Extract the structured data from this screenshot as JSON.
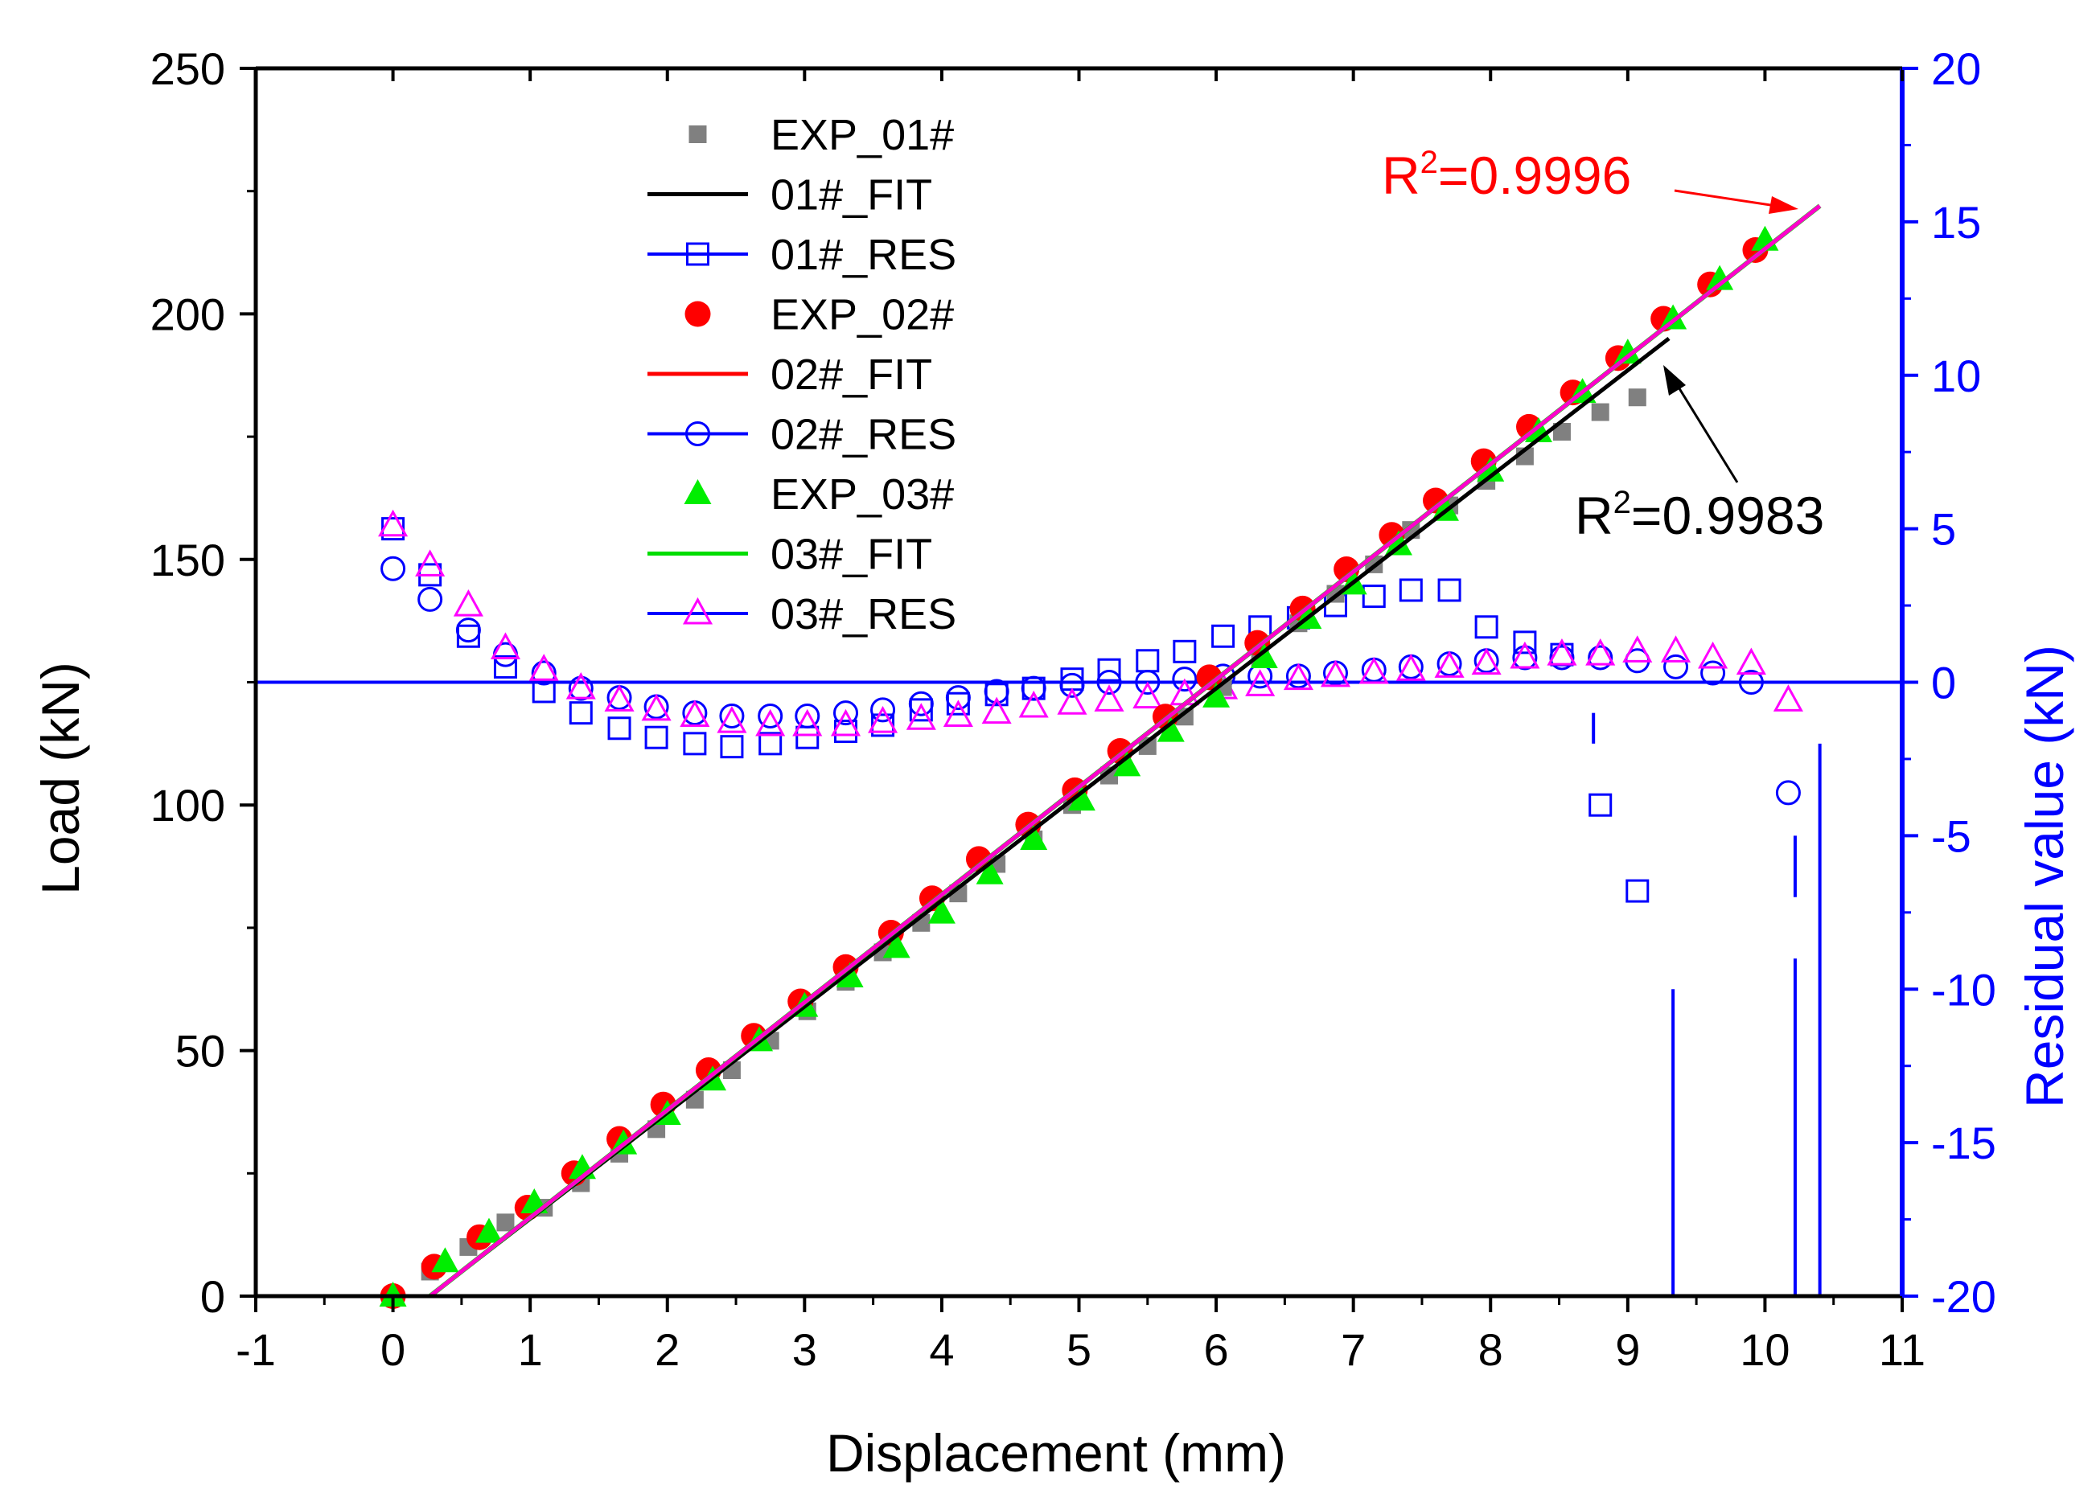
{
  "chart_data": {
    "type": "scatter",
    "xlabel": "Displacement (mm)",
    "ylabel": "Load (kN)",
    "y2label": "Residual value (kN)",
    "xlim": [
      -1,
      11
    ],
    "ylim": [
      0,
      250
    ],
    "y2lim": [
      -20,
      20
    ],
    "xticks": [
      -1,
      0,
      1,
      2,
      3,
      4,
      5,
      6,
      7,
      8,
      9,
      10,
      11
    ],
    "yticks": [
      0,
      50,
      100,
      150,
      200,
      250
    ],
    "y2ticks": [
      -20,
      -15,
      -10,
      -5,
      0,
      5,
      10,
      15,
      20
    ],
    "grid": false,
    "legend_position": "top-left",
    "colors": {
      "axis": "#000000",
      "right_axis": "#0000ff",
      "exp01": "#808080",
      "fit01": "#000000",
      "exp02": "#ff0000",
      "fit02": "#ff0000",
      "exp03": "#00ee00",
      "fit03": "#00dd00",
      "fit_overlay": "#ff00cc",
      "res01": "#0000ff",
      "res02": "#0000ff",
      "res03": "#ff00ff",
      "zero_line": "#0000ff",
      "r2_red": "#ff0000",
      "r2_black": "#000000"
    },
    "legend": [
      {
        "label": "EXP_01#",
        "kind": "gray-square"
      },
      {
        "label": "01#_FIT",
        "kind": "black-line"
      },
      {
        "label": "01#_RES",
        "kind": "blue-line-open-square"
      },
      {
        "label": "EXP_02#",
        "kind": "red-circle"
      },
      {
        "label": "02#_FIT",
        "kind": "red-line"
      },
      {
        "label": "02#_RES",
        "kind": "blue-line-open-circle"
      },
      {
        "label": "EXP_03#",
        "kind": "green-triangle"
      },
      {
        "label": "03#_FIT",
        "kind": "green-line"
      },
      {
        "label": "03#_RES",
        "kind": "blue-line-open-triangle"
      }
    ],
    "annotations": {
      "r2_top": {
        "base": "R",
        "sup": "2",
        "rest": "=0.9996"
      },
      "r2_bottom": {
        "base": "R",
        "sup": "2",
        "rest": "=0.9983"
      }
    },
    "series": [
      {
        "name": "EXP_01#",
        "x": [
          0,
          0.27,
          0.55,
          0.82,
          1.1,
          1.37,
          1.65,
          1.92,
          2.2,
          2.47,
          2.75,
          3.02,
          3.3,
          3.57,
          3.85,
          4.12,
          4.4,
          4.67,
          4.95,
          5.22,
          5.5,
          5.77,
          6.05,
          6.32,
          6.6,
          6.87,
          7.15,
          7.42,
          7.7,
          7.97,
          8.25,
          8.52,
          8.8,
          9.07
        ],
        "y": [
          0,
          5,
          10,
          15,
          18,
          23,
          29,
          34,
          40,
          46,
          52,
          58,
          64,
          70,
          76,
          82,
          88,
          93,
          100,
          106,
          112,
          118,
          124,
          130,
          137,
          143,
          149,
          156,
          161,
          166,
          171,
          176,
          180,
          183
        ]
      },
      {
        "name": "EXP_02#",
        "x": [
          0,
          0.3,
          0.63,
          0.98,
          1.32,
          1.65,
          1.97,
          2.3,
          2.63,
          2.97,
          3.3,
          3.63,
          3.93,
          4.27,
          4.63,
          4.97,
          5.3,
          5.63,
          5.95,
          6.3,
          6.63,
          6.95,
          7.28,
          7.6,
          7.95,
          8.28,
          8.6,
          8.93,
          9.26,
          9.6,
          9.93
        ],
        "y": [
          0,
          6,
          12,
          18,
          25,
          32,
          39,
          46,
          53,
          60,
          67,
          74,
          81,
          89,
          96,
          103,
          111,
          118,
          126,
          133,
          140,
          148,
          155,
          162,
          170,
          177,
          184,
          191,
          199,
          206,
          213
        ]
      },
      {
        "name": "EXP_03#",
        "x": [
          0,
          0.38,
          0.7,
          1.03,
          1.38,
          1.68,
          2,
          2.33,
          2.67,
          3,
          3.33,
          3.67,
          4,
          4.35,
          4.67,
          5.02,
          5.35,
          5.67,
          6,
          6.35,
          6.67,
          7,
          7.33,
          7.67,
          8,
          8.35,
          8.67,
          9,
          9.33,
          9.67,
          10
        ],
        "y": [
          0,
          7,
          13,
          19,
          26,
          31,
          37,
          44,
          52,
          59,
          65,
          71,
          78,
          86,
          93,
          101,
          108,
          115,
          122,
          130,
          138,
          145,
          153,
          160,
          168,
          176,
          184,
          192,
          199,
          207,
          215
        ]
      },
      {
        "name": "01#_FIT",
        "x": [
          0.27,
          9.3
        ],
        "y": [
          0,
          195
        ]
      },
      {
        "name": "02#_FIT",
        "x": [
          0.27,
          10.4
        ],
        "y": [
          0,
          222
        ]
      },
      {
        "name": "03#_FIT",
        "x": [
          0.27,
          10.4
        ],
        "y": [
          0,
          222
        ]
      },
      {
        "name": "01#_RES",
        "axis": "right",
        "x": [
          0,
          0.27,
          0.55,
          0.82,
          1.1,
          1.37,
          1.65,
          1.92,
          2.2,
          2.47,
          2.75,
          3.02,
          3.3,
          3.57,
          3.85,
          4.12,
          4.4,
          4.67,
          4.95,
          5.22,
          5.5,
          5.77,
          6.05,
          6.32,
          6.6,
          6.87,
          7.15,
          7.42,
          7.7,
          7.97,
          8.25,
          8.52,
          8.8,
          9.07
        ],
        "y": [
          5,
          3.5,
          1.5,
          0.5,
          -0.3,
          -1,
          -1.5,
          -1.8,
          -2,
          -2.1,
          -2,
          -1.8,
          -1.6,
          -1.4,
          -0.9,
          -0.7,
          -0.4,
          -0.2,
          0.1,
          0.4,
          0.7,
          1,
          1.5,
          1.8,
          2.1,
          2.5,
          2.8,
          3,
          3,
          1.8,
          1.3,
          0.9,
          -4,
          -6.8
        ]
      },
      {
        "name": "02#_RES",
        "axis": "right",
        "x": [
          0,
          0.27,
          0.55,
          0.82,
          1.1,
          1.37,
          1.65,
          1.92,
          2.2,
          2.47,
          2.75,
          3.02,
          3.3,
          3.57,
          3.85,
          4.12,
          4.4,
          4.67,
          4.95,
          5.22,
          5.5,
          5.77,
          6.05,
          6.32,
          6.6,
          6.87,
          7.15,
          7.42,
          7.7,
          7.97,
          8.25,
          8.52,
          8.8,
          9.07,
          9.35,
          9.62,
          9.9,
          10.17
        ],
        "y": [
          3.7,
          2.7,
          1.7,
          0.9,
          0.3,
          -0.2,
          -0.5,
          -0.8,
          -1,
          -1.1,
          -1.1,
          -1.1,
          -1,
          -0.9,
          -0.7,
          -0.5,
          -0.3,
          -0.2,
          -0.1,
          0,
          0,
          0.1,
          0.2,
          0.2,
          0.2,
          0.3,
          0.4,
          0.5,
          0.6,
          0.7,
          0.8,
          0.8,
          0.8,
          0.7,
          0.5,
          0.3,
          0,
          -3.6
        ]
      },
      {
        "name": "03#_RES",
        "axis": "right",
        "x": [
          0,
          0.27,
          0.55,
          0.82,
          1.1,
          1.37,
          1.65,
          1.92,
          2.2,
          2.47,
          2.75,
          3.02,
          3.3,
          3.57,
          3.85,
          4.12,
          4.4,
          4.67,
          4.95,
          5.22,
          5.5,
          5.77,
          6.05,
          6.32,
          6.6,
          6.87,
          7.15,
          7.42,
          7.7,
          7.97,
          8.25,
          8.52,
          8.8,
          9.07,
          9.35,
          9.62,
          9.9,
          10.17
        ],
        "y": [
          5.1,
          3.8,
          2.5,
          1.1,
          0.4,
          -0.2,
          -0.6,
          -0.9,
          -1.1,
          -1.3,
          -1.4,
          -1.4,
          -1.4,
          -1.3,
          -1.2,
          -1.1,
          -1,
          -0.8,
          -0.7,
          -0.6,
          -0.5,
          -0.4,
          -0.2,
          -0.1,
          0.1,
          0.2,
          0.3,
          0.4,
          0.5,
          0.6,
          0.8,
          0.9,
          0.9,
          1,
          1,
          0.8,
          0.6,
          -0.6
        ]
      }
    ]
  }
}
